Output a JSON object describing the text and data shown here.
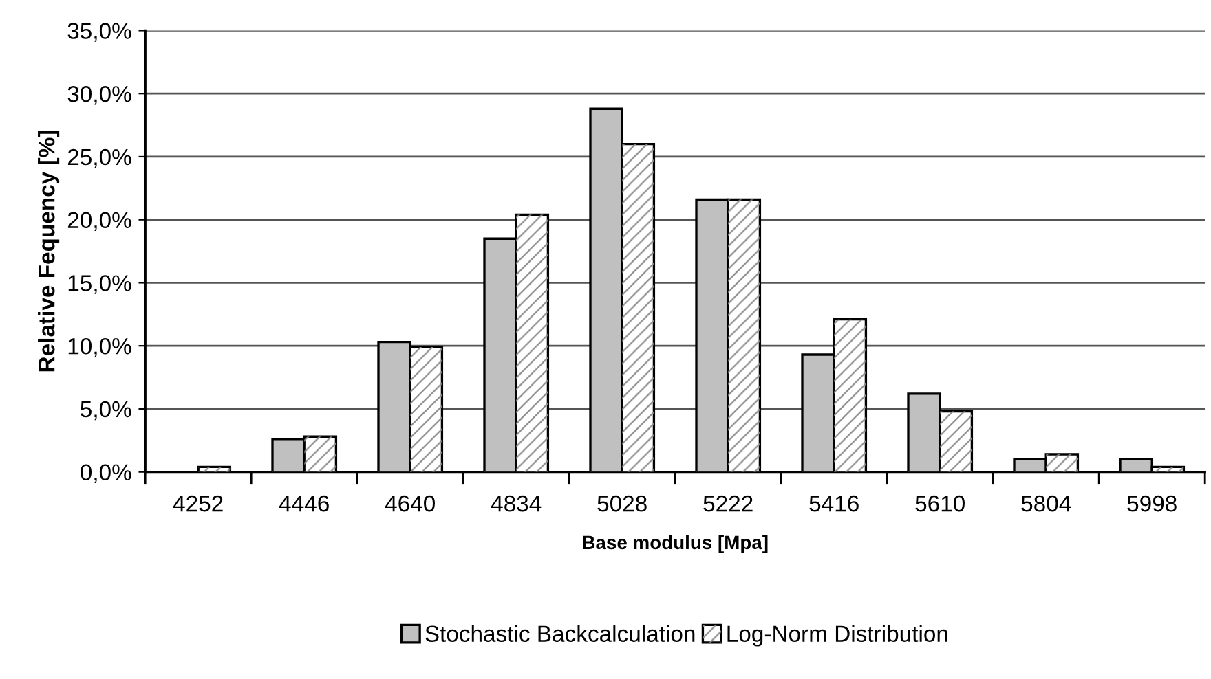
{
  "chart_data": {
    "type": "bar",
    "xlabel": "Base modulus [Mpa]",
    "ylabel": "Relative Fequency [%]",
    "categories": [
      "4252",
      "4446",
      "4640",
      "4834",
      "5028",
      "5222",
      "5416",
      "5610",
      "5804",
      "5998"
    ],
    "series": [
      {
        "name": "Stochastic Backcalculation",
        "color": "#c0c0c0",
        "values": [
          null,
          2.6,
          10.3,
          18.5,
          28.8,
          21.6,
          9.3,
          6.2,
          1.0,
          1.0
        ]
      },
      {
        "name": "Log-Norm Distribution",
        "color": "#ffffff",
        "values": [
          0.4,
          2.8,
          9.9,
          20.4,
          26.0,
          21.6,
          12.1,
          4.8,
          1.4,
          0.4
        ]
      }
    ],
    "ylim": [
      0,
      35
    ],
    "yticks": [
      {
        "value": 0,
        "label": "0,0%"
      },
      {
        "value": 5,
        "label": "5,0%"
      },
      {
        "value": 10,
        "label": "10,0%"
      },
      {
        "value": 15,
        "label": "15,0%"
      },
      {
        "value": 20,
        "label": "20,0%"
      },
      {
        "value": 25,
        "label": "25,0%"
      },
      {
        "value": 30,
        "label": "30,0%"
      },
      {
        "value": 35,
        "label": "35,0%"
      }
    ],
    "grid": "y",
    "legend": "bottom"
  }
}
